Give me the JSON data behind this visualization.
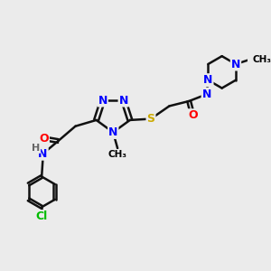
{
  "background_color": "#ebebeb",
  "atom_colors": {
    "N": "#0000ff",
    "O": "#ff0000",
    "S": "#ccaa00",
    "Cl": "#00bb00",
    "C": "#000000",
    "H": "#666666"
  },
  "bond_color": "#111111",
  "bond_width": 1.8,
  "figsize": [
    3.0,
    3.0
  ],
  "dpi": 100
}
